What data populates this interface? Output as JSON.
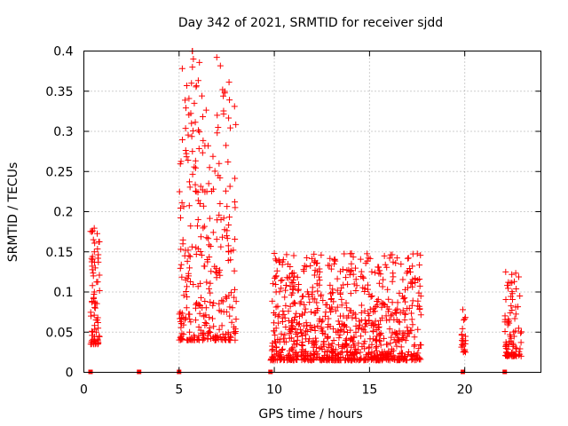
{
  "chart_data": {
    "type": "scatter",
    "title": "Day 342 of 2021, SRMTID for receiver sjdd",
    "xlabel": "GPS time / hours",
    "ylabel": "SRMTID / TECUs",
    "xlim": [
      0,
      24
    ],
    "ylim": [
      0,
      0.4
    ],
    "x_ticks": [
      0,
      5,
      10,
      15,
      20
    ],
    "x_tick_labels": [
      "0",
      "5",
      "10",
      "15",
      "20"
    ],
    "y_ticks": [
      0,
      0.05,
      0.1,
      0.15,
      0.2,
      0.25,
      0.3,
      0.35,
      0.4
    ],
    "y_tick_labels": [
      "0",
      "0.05",
      "0.1",
      "0.15",
      "0.2",
      "0.25",
      "0.3",
      "0.35",
      "0.4"
    ],
    "grid": true,
    "marker": "+",
    "color": "#ff0000",
    "zero_markers_x": [
      0.35,
      2.9,
      5.0,
      9.8,
      19.9,
      22.1
    ],
    "clusters": [
      {
        "x_range": [
          0.35,
          0.85
        ],
        "y_range": [
          0.035,
          0.18
        ],
        "count": 60
      },
      {
        "x_range": [
          5.0,
          8.0
        ],
        "y_range": [
          0.04,
          0.4
        ],
        "count": 300
      },
      {
        "x_range": [
          9.8,
          17.7
        ],
        "y_range": [
          0.015,
          0.148
        ],
        "count": 900
      },
      {
        "x_range": [
          19.8,
          20.05
        ],
        "y_range": [
          0.025,
          0.078
        ],
        "count": 20
      },
      {
        "x_range": [
          22.1,
          23.0
        ],
        "y_range": [
          0.02,
          0.125
        ],
        "count": 90
      }
    ],
    "points": [
      [
        0.42,
        0.175
      ],
      [
        0.5,
        0.165
      ],
      [
        0.55,
        0.15
      ],
      [
        0.45,
        0.14
      ],
      [
        0.6,
        0.13
      ],
      [
        0.5,
        0.12
      ],
      [
        0.45,
        0.108
      ],
      [
        0.55,
        0.1
      ],
      [
        0.6,
        0.08
      ],
      [
        0.7,
        0.065
      ],
      [
        0.75,
        0.055
      ],
      [
        0.65,
        0.05
      ],
      [
        0.8,
        0.045
      ],
      [
        0.75,
        0.038
      ],
      [
        5.7,
        0.4
      ],
      [
        5.75,
        0.39
      ],
      [
        5.7,
        0.38
      ],
      [
        5.65,
        0.36
      ],
      [
        5.8,
        0.335
      ],
      [
        5.65,
        0.31
      ],
      [
        5.7,
        0.275
      ],
      [
        6.6,
        0.255
      ],
      [
        6.8,
        0.228
      ],
      [
        7.0,
        0.32
      ],
      [
        7.05,
        0.305
      ],
      [
        7.0,
        0.298
      ],
      [
        7.1,
        0.26
      ],
      [
        7.05,
        0.245
      ],
      [
        7.15,
        0.21
      ],
      [
        5.9,
        0.225
      ],
      [
        6.1,
        0.21
      ],
      [
        6.0,
        0.19
      ],
      [
        7.2,
        0.19
      ],
      [
        7.5,
        0.17
      ],
      [
        5.2,
        0.16
      ],
      [
        5.3,
        0.145
      ],
      [
        7.6,
        0.15
      ],
      [
        7.7,
        0.14
      ],
      [
        5.5,
        0.12
      ],
      [
        10.0,
        0.148
      ],
      [
        10.1,
        0.12
      ],
      [
        12.0,
        0.1
      ],
      [
        13.6,
        0.128
      ],
      [
        14.2,
        0.11
      ],
      [
        16.2,
        0.113
      ],
      [
        19.9,
        0.078
      ],
      [
        19.95,
        0.065
      ],
      [
        22.15,
        0.125
      ],
      [
        22.6,
        0.113
      ]
    ]
  }
}
